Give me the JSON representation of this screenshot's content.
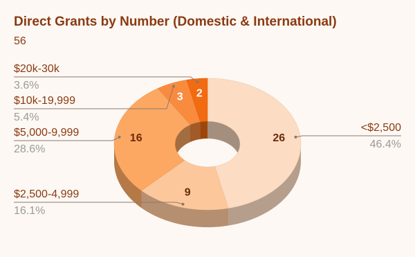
{
  "chart_data": {
    "type": "donut3d",
    "title": "Direct Grants by Number (Domestic & International)",
    "subtitle": "56",
    "categories": [
      "<$2,500",
      "$2,500-4,999",
      "$5,000-9,999",
      "$10k-19,999",
      "$20k-30k"
    ],
    "values": [
      26,
      9,
      16,
      3,
      2
    ],
    "percent_labels": [
      "46.4%",
      "16.1%",
      "28.6%",
      "5.4%",
      "3.6%"
    ],
    "colors": [
      "#fcdcc2",
      "#fdc79c",
      "#fca863",
      "#f98b3f",
      "#f26b10"
    ]
  }
}
